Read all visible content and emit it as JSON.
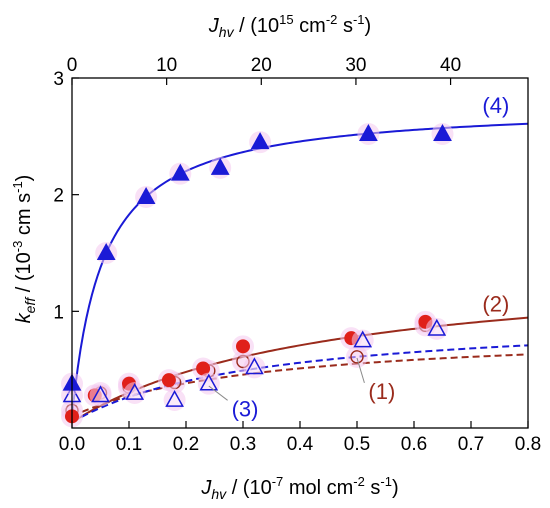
{
  "colors": {
    "series1": "#9a2b1c",
    "series2": "#9a2b1c",
    "series3": "#1a1ad6",
    "series4": "#1a1ad6",
    "filled_red": "#e0201a",
    "halo": "#f4c8ee"
  },
  "chart_data": {
    "type": "scatter",
    "x_axis_bottom": {
      "label_parts": [
        "J",
        "hv",
        " / (10",
        "-7",
        " mol cm",
        "-2",
        " s",
        "-1",
        ")"
      ],
      "range": [
        0,
        0.8
      ],
      "ticks": [
        0.0,
        0.1,
        0.2,
        0.3,
        0.4,
        0.5,
        0.6,
        0.7,
        0.8
      ],
      "tick_labels": [
        "0.0",
        "0.1",
        "0.2",
        "0.3",
        "0.4",
        "0.5",
        "0.6",
        "0.7",
        "0.8"
      ]
    },
    "x_axis_top": {
      "label_parts": [
        "J",
        "hv",
        " / (10",
        "15",
        " cm",
        "-2",
        " s",
        "-1",
        ")"
      ],
      "range": [
        0,
        48.18
      ],
      "ticks": [
        0,
        10,
        20,
        30,
        40
      ],
      "tick_labels": [
        "0",
        "10",
        "20",
        "30",
        "40"
      ]
    },
    "y_axis": {
      "label_parts": [
        "k",
        "eff",
        " / (10",
        "-3",
        " cm s",
        "-1",
        ")"
      ],
      "range": [
        0,
        3
      ],
      "ticks": [
        1,
        2,
        3
      ],
      "tick_labels": [
        "1",
        "2",
        "3"
      ]
    },
    "series": [
      {
        "key": "1",
        "label": "(1)",
        "marker": "circle-open",
        "points": [
          [
            0.0,
            0.15
          ],
          [
            0.05,
            0.3
          ],
          [
            0.1,
            0.35
          ],
          [
            0.18,
            0.39
          ],
          [
            0.24,
            0.49
          ],
          [
            0.3,
            0.57
          ],
          [
            0.5,
            0.61
          ],
          [
            0.62,
            0.88
          ]
        ],
        "fit": {
          "model": "langmuir",
          "kmin": 0.1,
          "kmax": 0.85,
          "K": 0.33,
          "style": "dashed"
        }
      },
      {
        "key": "2",
        "label": "(2)",
        "marker": "circle-filled",
        "points": [
          [
            0.0,
            0.1
          ],
          [
            0.04,
            0.28
          ],
          [
            0.1,
            0.38
          ],
          [
            0.17,
            0.41
          ],
          [
            0.23,
            0.51
          ],
          [
            0.3,
            0.7
          ],
          [
            0.49,
            0.77
          ],
          [
            0.62,
            0.91
          ]
        ],
        "fit": {
          "model": "langmuir",
          "kmin": 0.05,
          "kmax": 1.45,
          "K": 0.45,
          "style": "solid"
        }
      },
      {
        "key": "3",
        "label": "(3)",
        "marker": "triangle-open",
        "points": [
          [
            0.0,
            0.28
          ],
          [
            0.05,
            0.28
          ],
          [
            0.11,
            0.3
          ],
          [
            0.18,
            0.24
          ],
          [
            0.24,
            0.38
          ],
          [
            0.32,
            0.52
          ],
          [
            0.51,
            0.75
          ],
          [
            0.64,
            0.85
          ]
        ],
        "fit": {
          "model": "langmuir",
          "kmin": 0.05,
          "kmax": 0.98,
          "K": 0.33,
          "style": "dashed"
        }
      },
      {
        "key": "4",
        "label": "(4)",
        "marker": "triangle-filled",
        "points": [
          [
            0.0,
            0.38
          ],
          [
            0.06,
            1.5
          ],
          [
            0.13,
            1.98
          ],
          [
            0.19,
            2.18
          ],
          [
            0.26,
            2.23
          ],
          [
            0.33,
            2.45
          ],
          [
            0.52,
            2.52
          ],
          [
            0.65,
            2.52
          ]
        ],
        "fit": {
          "model": "langmuir",
          "kmin": 0.1,
          "kmax": 2.78,
          "K": 0.055,
          "style": "solid"
        }
      }
    ],
    "annotations": [
      {
        "text": "(1)",
        "series": "1",
        "position": [
          0.52,
          0.25
        ],
        "pointer_to": [
          0.5,
          0.6
        ]
      },
      {
        "text": "(2)",
        "series": "2",
        "position": [
          0.72,
          1.0
        ]
      },
      {
        "text": "(3)",
        "series": "3",
        "position": [
          0.28,
          0.1
        ],
        "pointer_to": [
          0.24,
          0.36
        ]
      },
      {
        "text": "(4)",
        "series": "4",
        "position": [
          0.72,
          2.7
        ]
      }
    ],
    "grid": false,
    "legend": "none"
  }
}
